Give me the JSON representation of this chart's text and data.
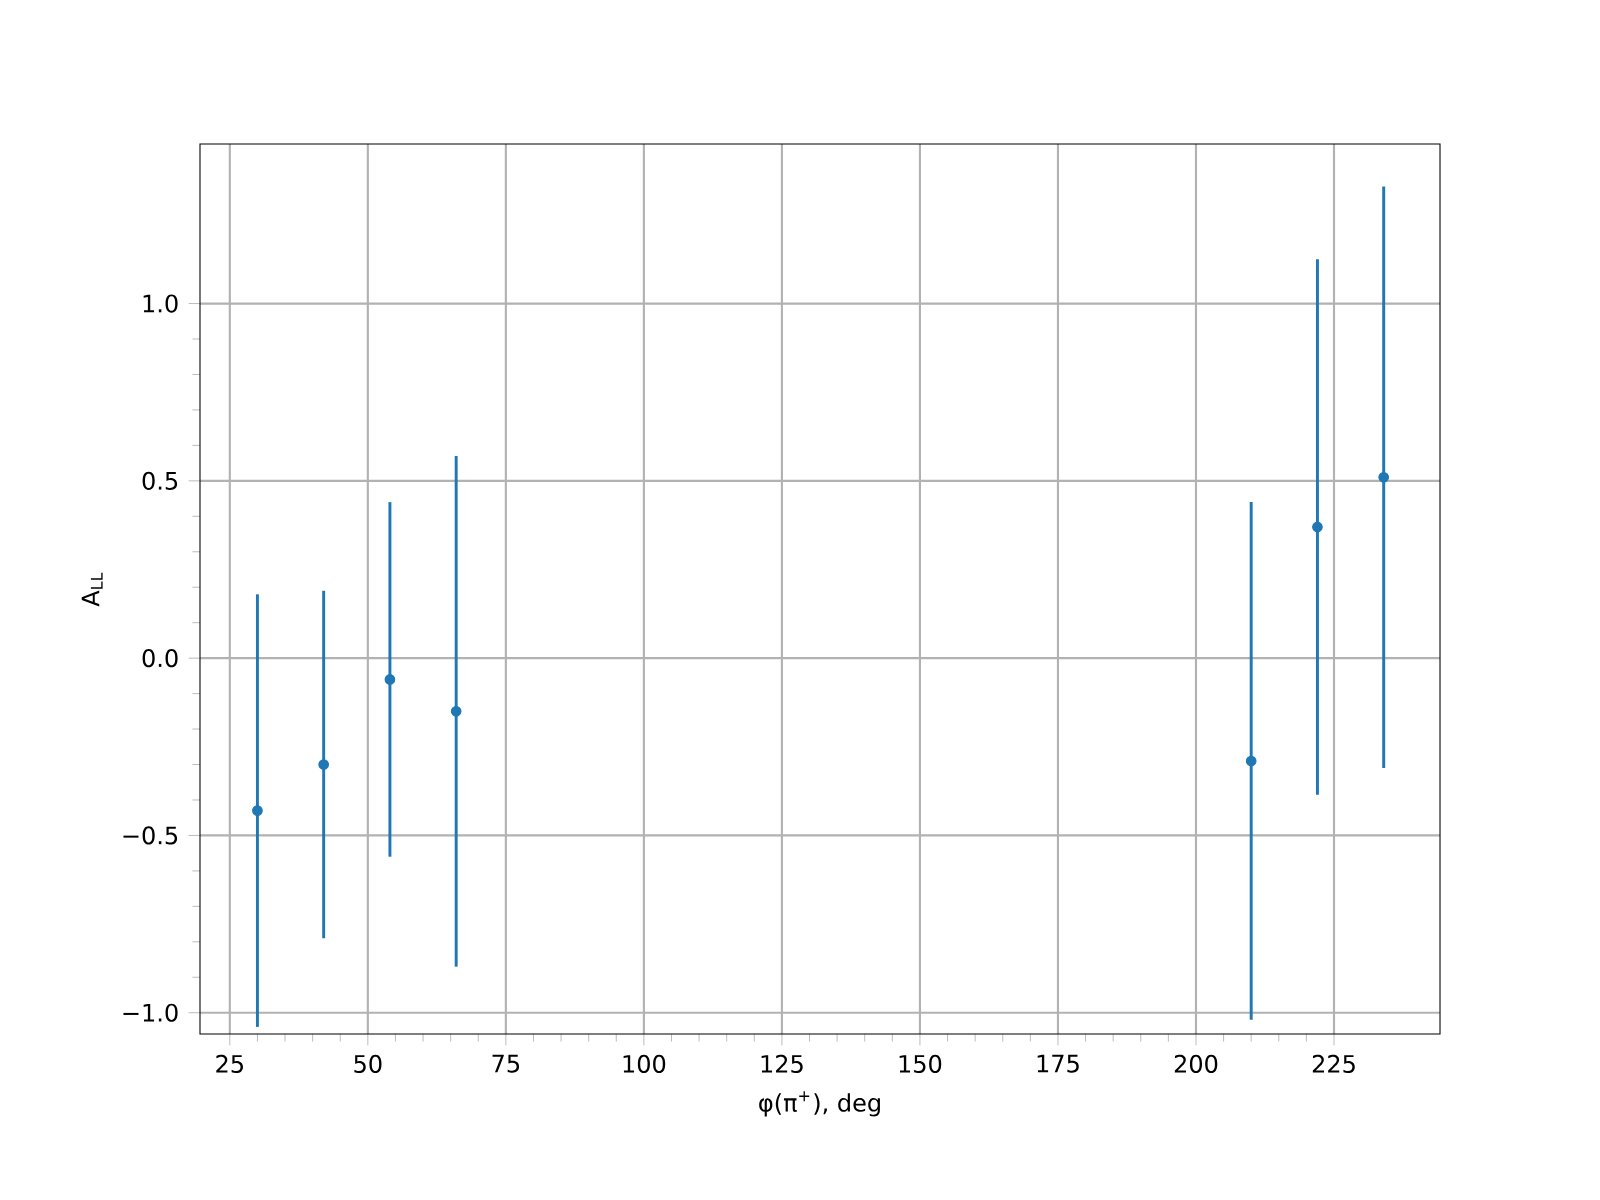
{
  "chart_data": {
    "type": "scatter",
    "xlabel": "φ(π$^{+}$), deg",
    "ylabel": "A$_{LL}$",
    "x": [
      30,
      42,
      54,
      66,
      210,
      222,
      234
    ],
    "series": [
      {
        "color": "#1f77b4",
        "values": [
          -0.43,
          -0.3,
          -0.06,
          -0.15,
          -0.29,
          0.37,
          0.51
        ],
        "errors": [
          0.61,
          0.49,
          0.5,
          0.72,
          0.73,
          0.755,
          0.82
        ]
      }
    ],
    "marker": "circle",
    "grid": true,
    "xlim": [
      19.6,
      244.2
    ],
    "ylim": [
      -1.06,
      1.45
    ],
    "xticks": [
      25,
      50,
      75,
      100,
      125,
      150,
      175,
      200,
      225
    ],
    "yticks": [
      {
        "value": -1.0,
        "label": "−1.0"
      },
      {
        "value": -0.5,
        "label": "−0.5"
      },
      {
        "value": 0.0,
        "label": "0.0"
      },
      {
        "value": 0.5,
        "label": "0.5"
      },
      {
        "value": 1.0,
        "label": "1.0"
      }
    ]
  }
}
